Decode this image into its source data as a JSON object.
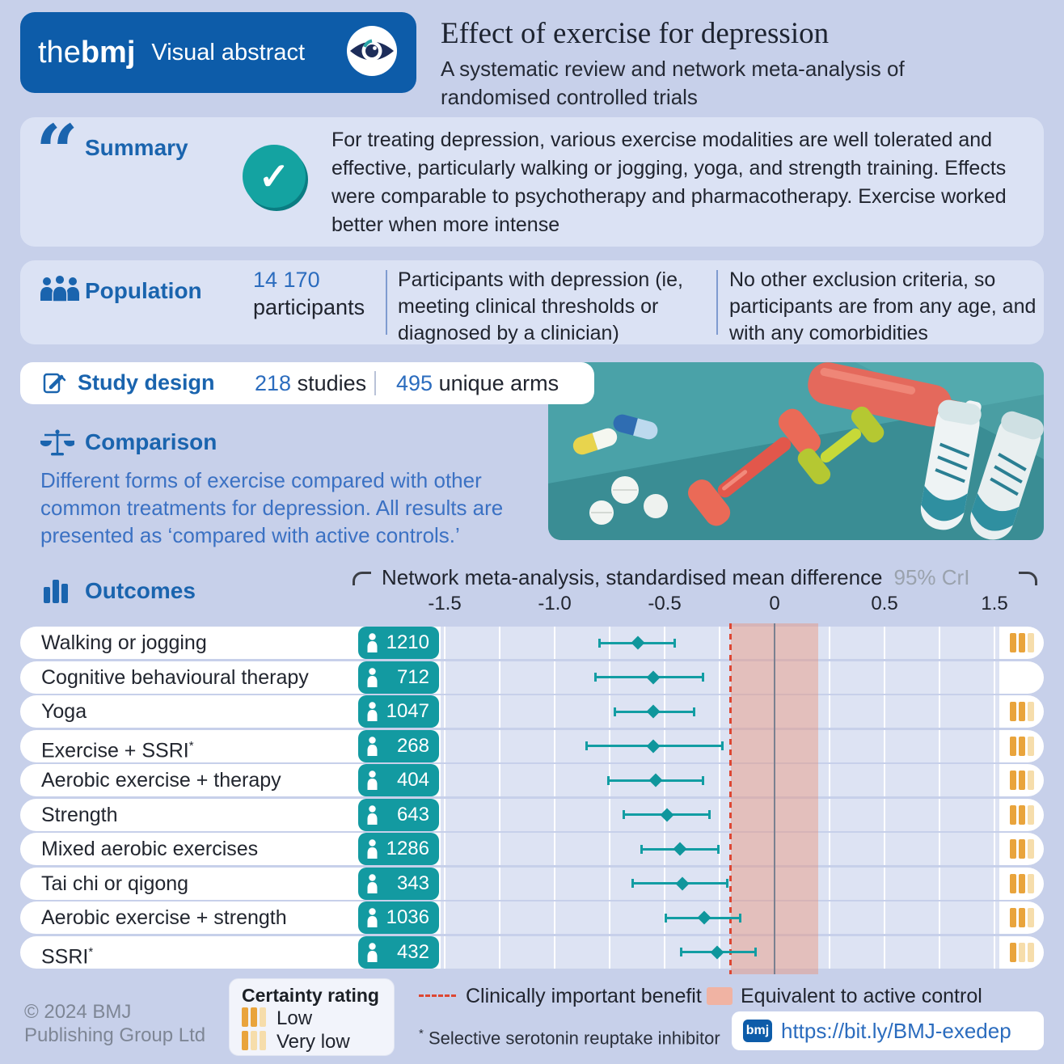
{
  "colors": {
    "bmj_blue": "#0d5ca9",
    "heading_blue": "#1a64ae",
    "number_blue": "#2b6cbe",
    "comparison_blue": "#3b71c3",
    "teal": "#129da3",
    "pill_teal": "#139aa1",
    "check_teal": "#14a3a1",
    "orange_dark": "#e9a43c",
    "orange_light": "#f6ddab",
    "red_dashed": "#dd4733",
    "equivalence_pink": "#f0b3a3",
    "page_bg": "#c7d0ea",
    "section_bg": "#dbe2f4"
  },
  "header": {
    "logo_the": "the",
    "logo_bmj": "bmj",
    "logo_label": "Visual abstract",
    "title": "Effect of exercise for depression",
    "subtitle": "A systematic review and network meta-analysis of randomised controlled trials"
  },
  "summary": {
    "heading": "Summary",
    "check_glyph": "✓",
    "text": "For treating depression, various exercise modalities are well tolerated and effective, particularly walking or jogging, yoga, and strength training. Effects were comparable to psychotherapy and pharmacotherapy. Exercise worked better when more intense"
  },
  "population": {
    "heading": "Population",
    "count": "14 170",
    "count_label": "participants",
    "col2": "Participants with depression (ie, meeting clinical thresholds or diagnosed by a clinician)",
    "col3": "No other exclusion criteria, so participants are from any age, and with any comorbidities"
  },
  "study_design": {
    "heading": "Study design",
    "studies_value": "218",
    "studies_label": " studies",
    "arms_value": "495",
    "arms_label": " unique arms"
  },
  "comparison": {
    "heading": "Comparison",
    "text": "Different forms of exercise compared with other common treatments for depression. All results are presented as ‘compared with active controls.’"
  },
  "outcomes": {
    "heading": "Outcomes",
    "chart_title": "Network meta-analysis, standardised mean difference",
    "ci_label": "95% CrI"
  },
  "chart_data": {
    "type": "forest",
    "title": "Network meta-analysis, standardised mean difference",
    "interval_label": "95% CrI",
    "xlim": [
      -1.5,
      1.5
    ],
    "axis_note": "axis compressed between 0.5 and 1.5",
    "x_tick_labels": [
      "-1.5",
      "-1.0",
      "-0.5",
      "0",
      "0.5",
      "1.5"
    ],
    "x_tick_values": [
      -1.5,
      -1.0,
      -0.5,
      0,
      0.5,
      1.5
    ],
    "clinically_important_threshold": -0.2,
    "equivalence_band": [
      -0.2,
      0.2
    ],
    "rows": [
      {
        "label": "Walking or jogging",
        "sup": "",
        "n": "1210",
        "mean": -0.62,
        "lo": -0.8,
        "hi": -0.45,
        "certainty": "low"
      },
      {
        "label": "Cognitive behavioural therapy",
        "sup": "",
        "n": "712",
        "mean": -0.55,
        "lo": -0.82,
        "hi": -0.32,
        "certainty": null
      },
      {
        "label": "Yoga",
        "sup": "",
        "n": "1047",
        "mean": -0.55,
        "lo": -0.73,
        "hi": -0.36,
        "certainty": "low"
      },
      {
        "label": "Exercise + SSRI",
        "sup": "*",
        "n": "268",
        "mean": -0.55,
        "lo": -0.86,
        "hi": -0.23,
        "certainty": "low"
      },
      {
        "label": "Aerobic exercise + therapy",
        "sup": "",
        "n": "404",
        "mean": -0.54,
        "lo": -0.76,
        "hi": -0.32,
        "certainty": "low"
      },
      {
        "label": "Strength",
        "sup": "",
        "n": "643",
        "mean": -0.49,
        "lo": -0.69,
        "hi": -0.29,
        "certainty": "low"
      },
      {
        "label": "Mixed aerobic exercises",
        "sup": "",
        "n": "1286",
        "mean": -0.43,
        "lo": -0.61,
        "hi": -0.25,
        "certainty": "low"
      },
      {
        "label": "Tai chi or qigong",
        "sup": "",
        "n": "343",
        "mean": -0.42,
        "lo": -0.65,
        "hi": -0.21,
        "certainty": "low"
      },
      {
        "label": "Aerobic exercise + strength",
        "sup": "",
        "n": "1036",
        "mean": -0.32,
        "lo": -0.5,
        "hi": -0.15,
        "certainty": "low"
      },
      {
        "label": "SSRI",
        "sup": "*",
        "n": "432",
        "mean": -0.26,
        "lo": -0.43,
        "hi": -0.08,
        "certainty": "very_low"
      }
    ]
  },
  "legend": {
    "certainty_title": "Certainty rating",
    "low_label": "Low",
    "very_low_label": "Very low",
    "benefit_label": "Clinically important benefit",
    "equivalence_label": "Equivalent to active control",
    "footnote_symbol": "*",
    "footnote": " Selective serotonin reuptake inhibitor"
  },
  "footer": {
    "copyright_line1": "© 2024 BMJ",
    "copyright_line2": "Publishing Group Ltd",
    "bmj_logo": "bmj",
    "link": "https://bit.ly/BMJ-exedep"
  },
  "icons": {
    "brand": "eye-icon",
    "summary": "quote-icon",
    "summary_status": "check-icon",
    "population": "people-icon",
    "study_design": "clipboard-pencil-icon",
    "comparison": "scales-icon",
    "outcomes": "bar-chart-icon",
    "participants": "person-icon",
    "certainty": "certainty-bars-icon"
  }
}
